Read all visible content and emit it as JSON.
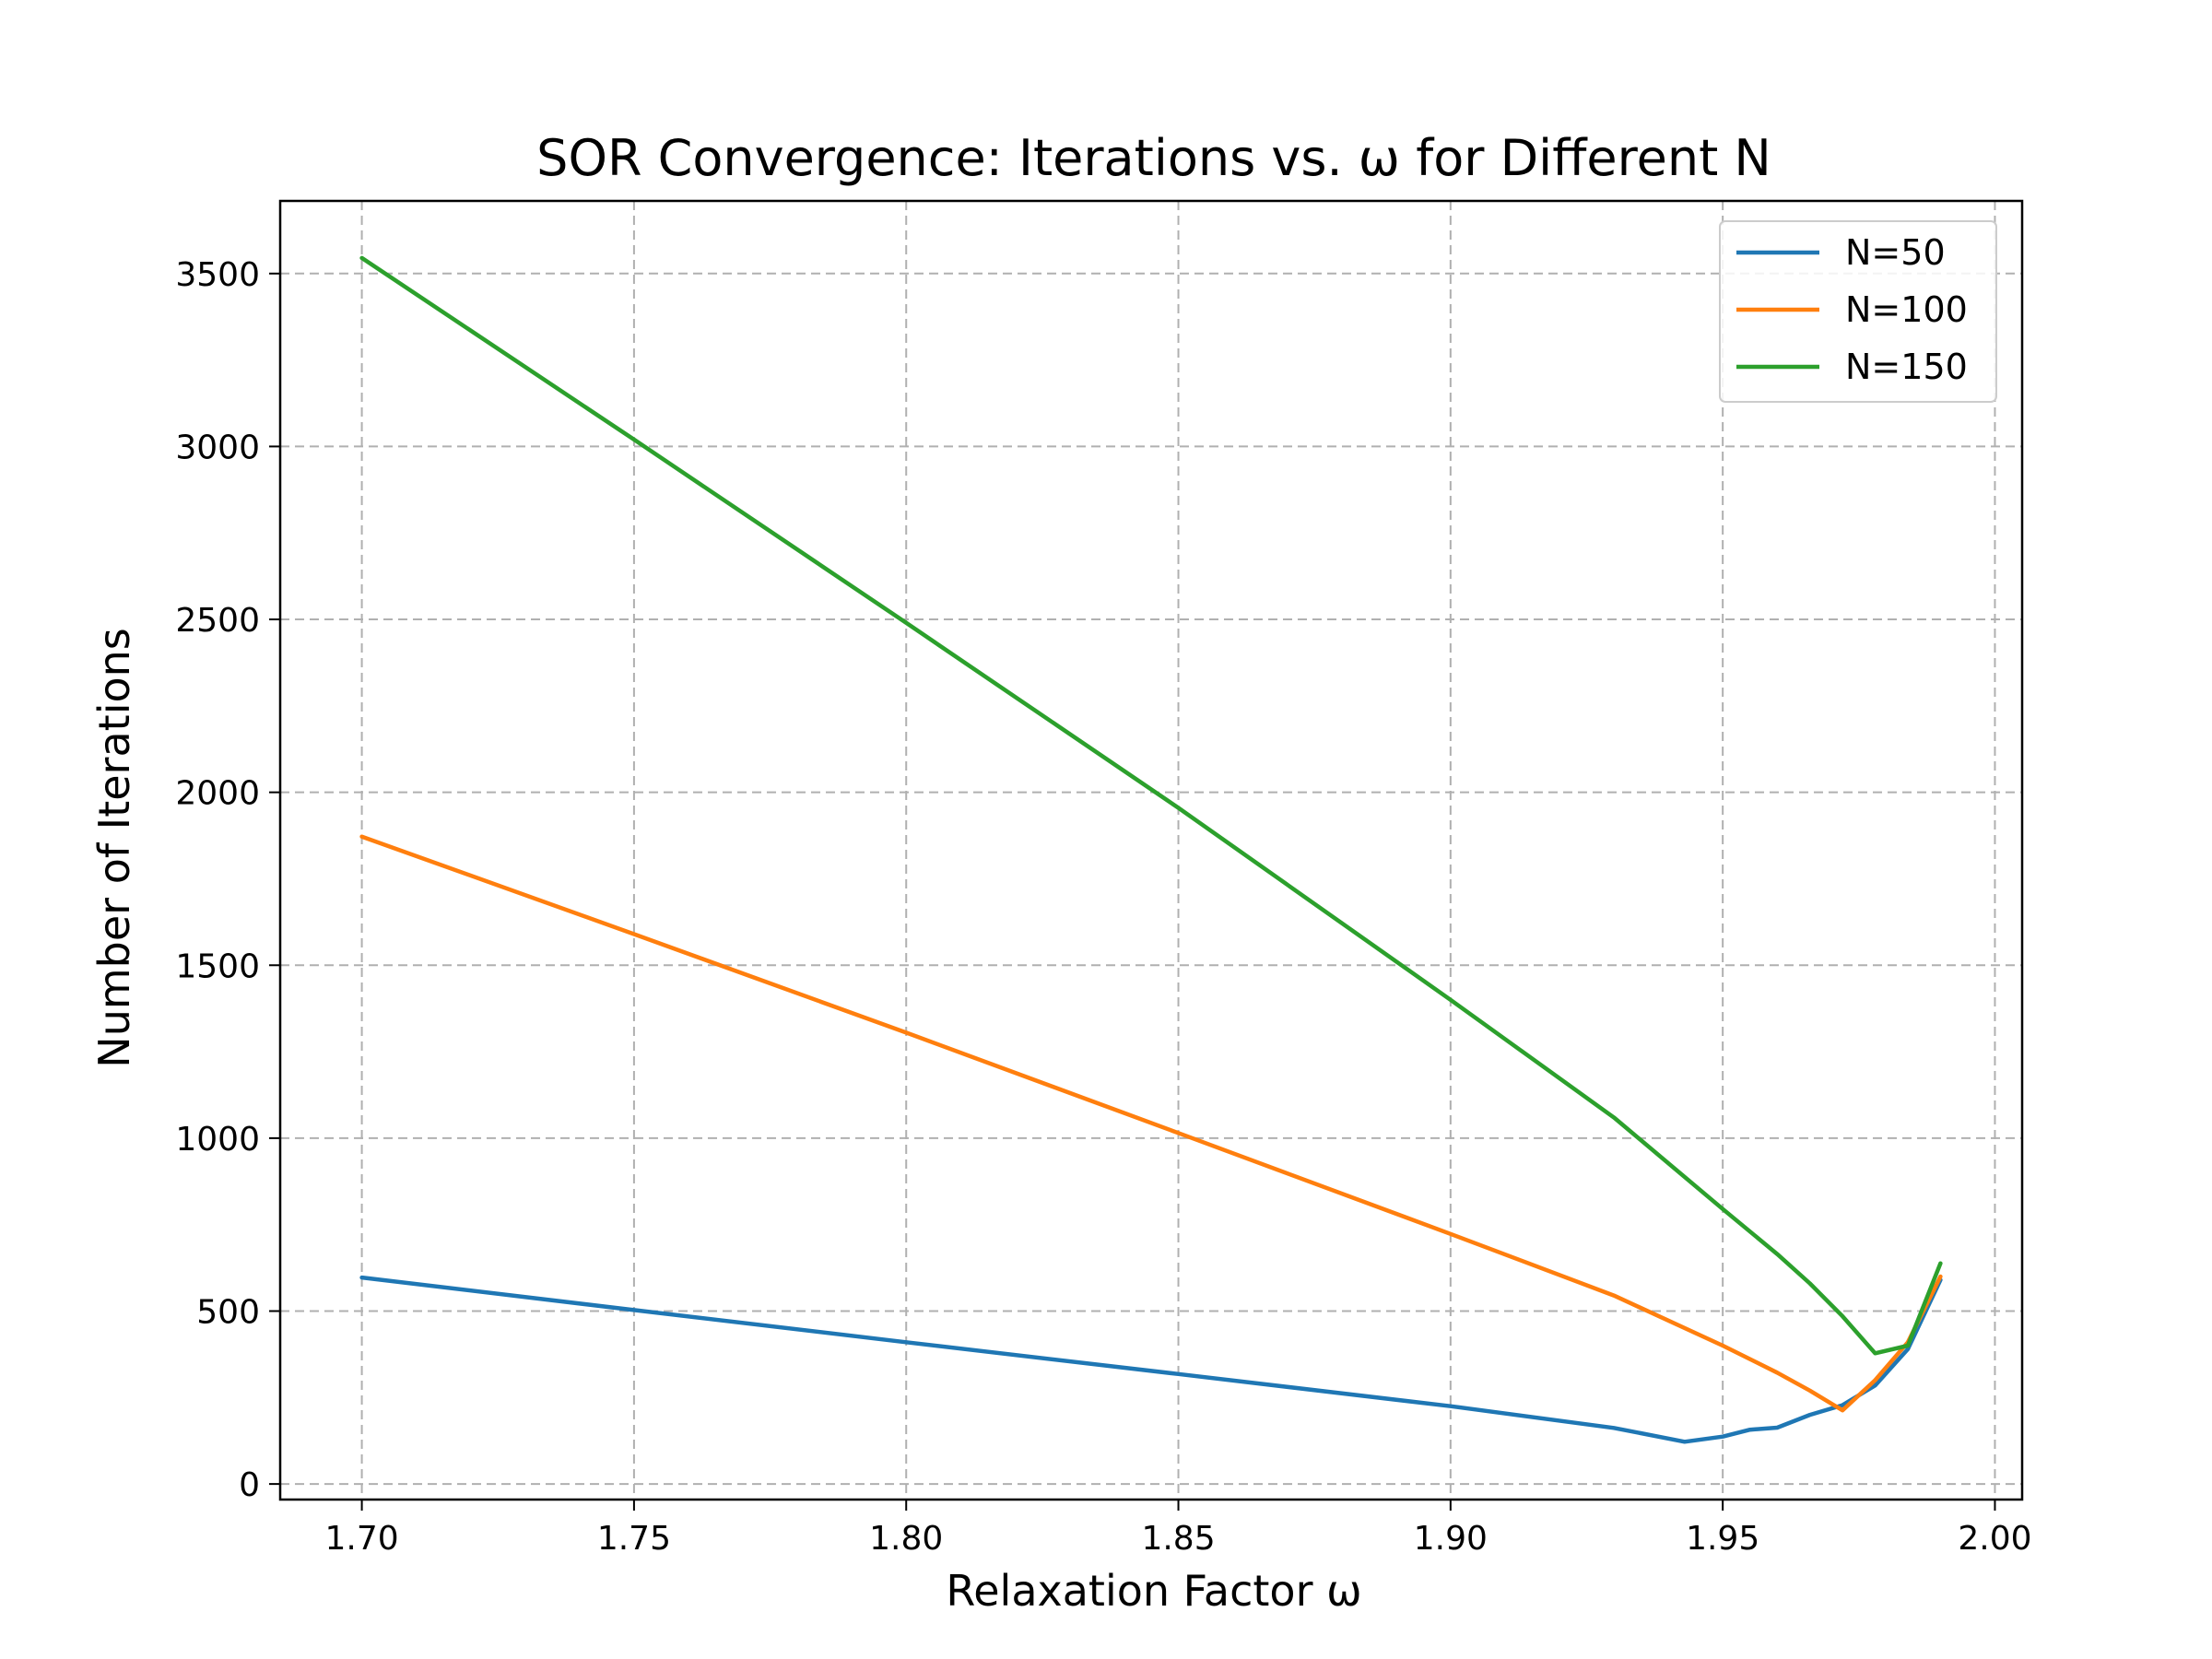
{
  "chart_data": {
    "type": "line",
    "title": "SOR Convergence: Iterations vs. ω for Different N",
    "xlabel": "Relaxation Factor ω",
    "ylabel": "Number of Iterations",
    "xlim": [
      1.685,
      2.005
    ],
    "ylim": [
      -45,
      3710
    ],
    "xticks": [
      1.7,
      1.75,
      1.8,
      1.85,
      1.9,
      1.95,
      2.0
    ],
    "xtick_labels": [
      "1.70",
      "1.75",
      "1.80",
      "1.85",
      "1.90",
      "1.95",
      "2.00"
    ],
    "yticks": [
      0,
      500,
      1000,
      1500,
      2000,
      2500,
      3000,
      3500
    ],
    "ytick_labels": [
      "0",
      "500",
      "1000",
      "1500",
      "2000",
      "2500",
      "3000",
      "3500"
    ],
    "grid": true,
    "legend_position": "top-right",
    "series": [
      {
        "name": "N=50",
        "color": "#1f77b4",
        "points": [
          [
            1.7,
            597
          ],
          [
            1.75,
            503
          ],
          [
            1.8,
            410
          ],
          [
            1.85,
            318
          ],
          [
            1.9,
            225
          ],
          [
            1.93,
            162
          ],
          [
            1.943,
            122
          ],
          [
            1.95,
            137
          ],
          [
            1.955,
            157
          ],
          [
            1.96,
            163
          ],
          [
            1.966,
            200
          ],
          [
            1.972,
            228
          ],
          [
            1.978,
            285
          ],
          [
            1.984,
            390
          ],
          [
            1.99,
            590
          ]
        ]
      },
      {
        "name": "N=100",
        "color": "#ff7f0e",
        "points": [
          [
            1.7,
            1872
          ],
          [
            1.75,
            1590
          ],
          [
            1.8,
            1305
          ],
          [
            1.85,
            1015
          ],
          [
            1.9,
            723
          ],
          [
            1.93,
            545
          ],
          [
            1.95,
            400
          ],
          [
            1.96,
            322
          ],
          [
            1.966,
            270
          ],
          [
            1.972,
            213
          ],
          [
            1.978,
            300
          ],
          [
            1.984,
            410
          ],
          [
            1.99,
            600
          ]
        ]
      },
      {
        "name": "N=150",
        "color": "#2ca02c",
        "points": [
          [
            1.7,
            3545
          ],
          [
            1.75,
            3020
          ],
          [
            1.8,
            2490
          ],
          [
            1.85,
            1955
          ],
          [
            1.9,
            1400
          ],
          [
            1.93,
            1060
          ],
          [
            1.95,
            795
          ],
          [
            1.96,
            665
          ],
          [
            1.966,
            580
          ],
          [
            1.972,
            485
          ],
          [
            1.978,
            378
          ],
          [
            1.984,
            400
          ],
          [
            1.99,
            638
          ]
        ]
      }
    ]
  }
}
